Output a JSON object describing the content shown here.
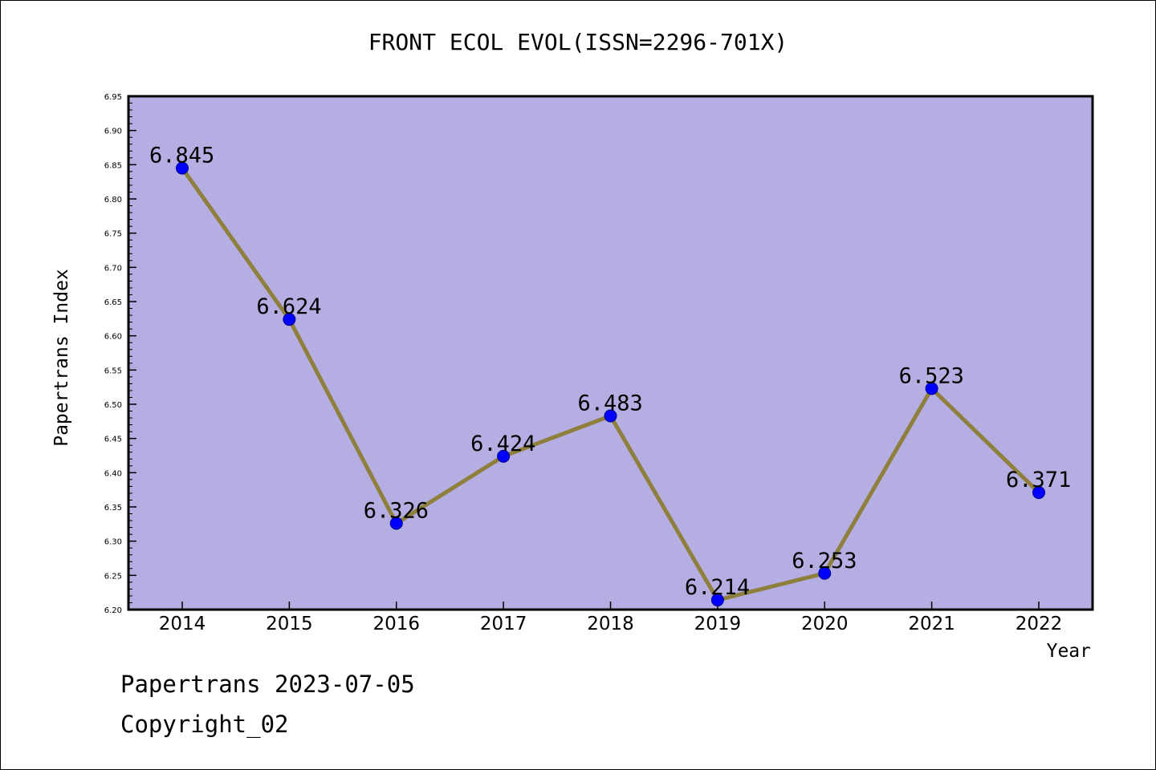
{
  "chart_data": {
    "type": "line",
    "title": "FRONT ECOL EVOL(ISSN=2296-701X)",
    "xlabel": "Year",
    "ylabel": "Papertrans Index",
    "categories": [
      "2014",
      "2015",
      "2016",
      "2017",
      "2018",
      "2019",
      "2020",
      "2021",
      "2022"
    ],
    "series": [
      {
        "values": [
          6.845,
          6.624,
          6.326,
          6.424,
          6.483,
          6.214,
          6.253,
          6.523,
          6.371
        ],
        "labels": [
          "6.845",
          "6.624",
          "6.326",
          "6.424",
          "6.483",
          "6.214",
          "6.253",
          "6.523",
          "6.371"
        ]
      }
    ],
    "ylim": [
      6.2,
      6.95
    ],
    "y_ticks": [
      "6.20",
      "6.25",
      "6.30",
      "6.35",
      "6.40",
      "6.45",
      "6.50",
      "6.55",
      "6.60",
      "6.65",
      "6.70",
      "6.75",
      "6.80",
      "6.85",
      "6.90",
      "6.95"
    ],
    "grid": false,
    "colors": {
      "plot_background": "#b4aee2",
      "line": "#8f7f3c",
      "marker": "#0000ff",
      "marker_edge": "#00008b"
    }
  },
  "footer": {
    "date_line": "Papertrans 2023-07-05",
    "copyright_line": "Copyright_02"
  }
}
